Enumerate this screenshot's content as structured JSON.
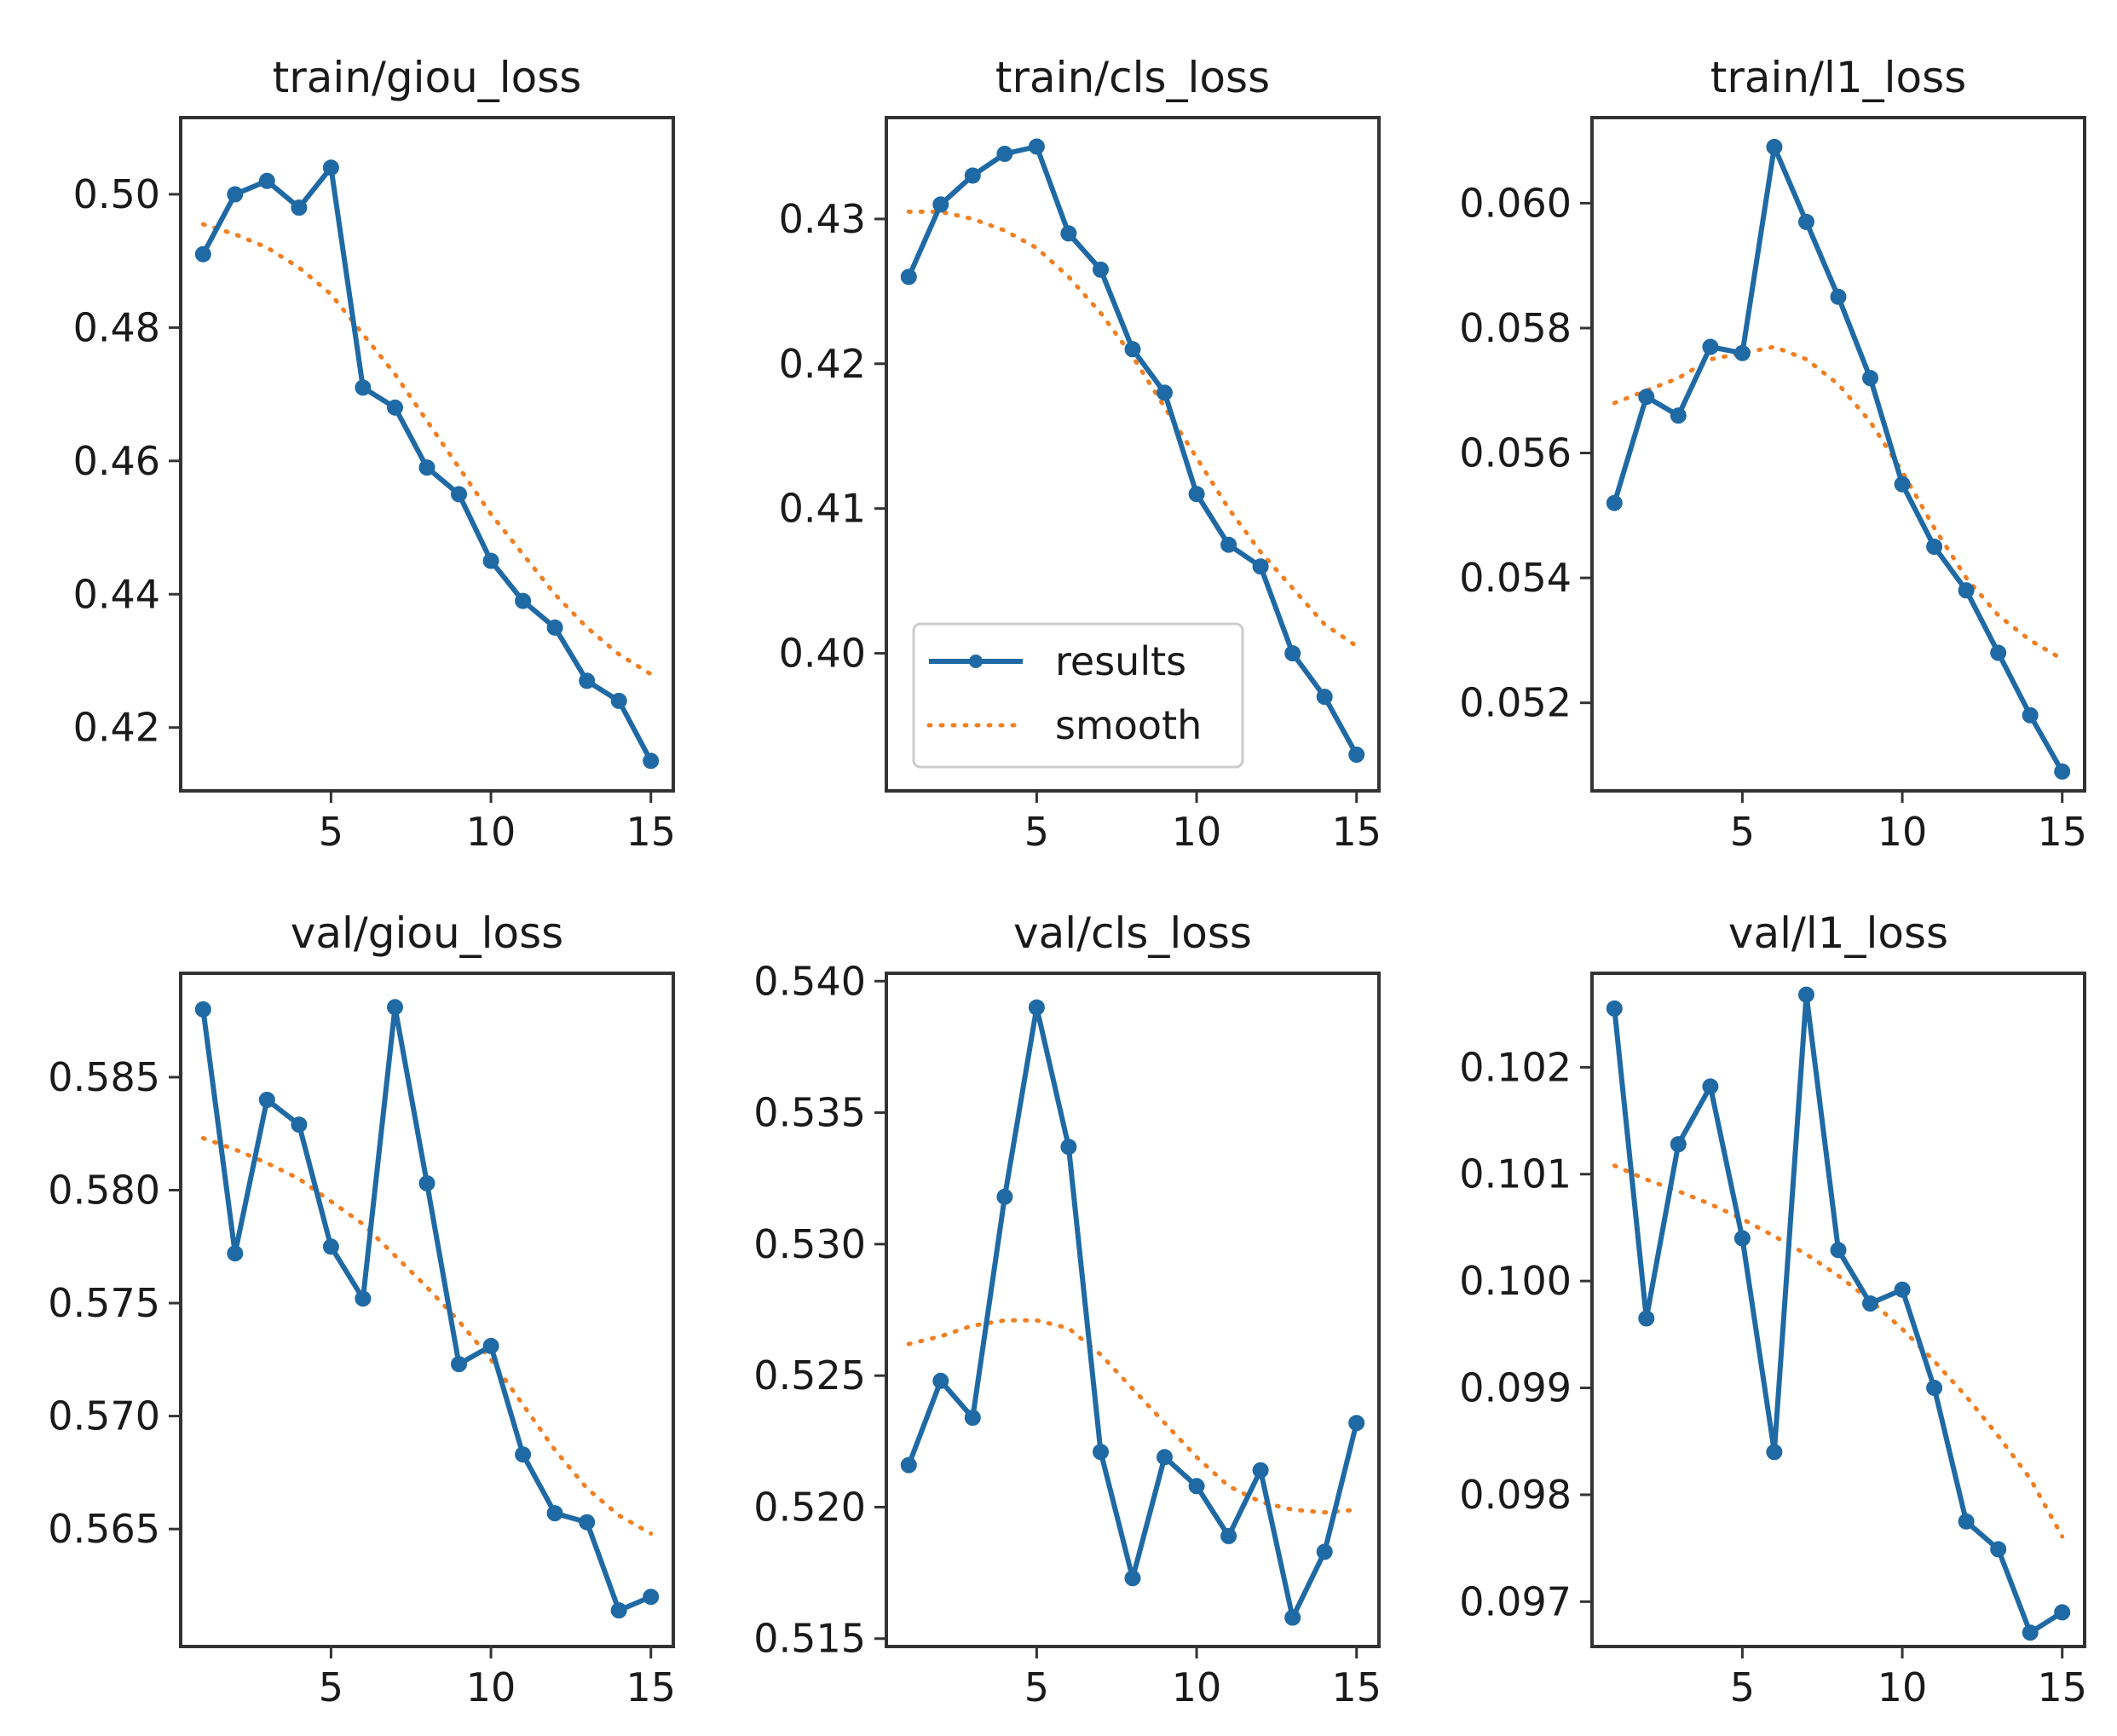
{
  "colors": {
    "results": "#1f6aa5",
    "smooth": "#f07f22",
    "axis": "#333333"
  },
  "legend": {
    "results_label": "results",
    "smooth_label": "smooth",
    "placement": "lower-left",
    "panel": 1
  },
  "chart_data": [
    {
      "type": "line",
      "title": "train/giou_loss",
      "xlabel": "",
      "ylabel": "",
      "xlim": [
        0.3,
        15.7
      ],
      "ylim": [
        0.4105,
        0.5115
      ],
      "xticks": [
        5,
        10,
        15
      ],
      "xtick_labels": [
        "5",
        "10",
        "15"
      ],
      "yticks": [
        0.42,
        0.44,
        0.46,
        0.48,
        0.5
      ],
      "ytick_labels": [
        "0.42",
        "0.44",
        "0.46",
        "0.48",
        "0.50"
      ],
      "x": [
        1,
        2,
        3,
        4,
        5,
        6,
        7,
        8,
        9,
        10,
        11,
        12,
        13,
        14,
        15
      ],
      "series": [
        {
          "name": "results",
          "values": [
            0.491,
            0.5,
            0.502,
            0.498,
            0.504,
            0.471,
            0.468,
            0.459,
            0.455,
            0.445,
            0.439,
            0.435,
            0.427,
            0.424,
            0.415
          ]
        },
        {
          "name": "smooth",
          "values": [
            0.4955,
            0.494,
            0.492,
            0.489,
            0.485,
            0.479,
            0.473,
            0.466,
            0.459,
            0.452,
            0.446,
            0.44,
            0.435,
            0.431,
            0.428
          ]
        }
      ]
    },
    {
      "type": "line",
      "title": "train/cls_loss",
      "xlabel": "",
      "ylabel": "",
      "xlim": [
        0.3,
        15.7
      ],
      "ylim": [
        0.3905,
        0.437
      ],
      "xticks": [
        5,
        10,
        15
      ],
      "xtick_labels": [
        "5",
        "10",
        "15"
      ],
      "yticks": [
        0.4,
        0.41,
        0.42,
        0.43
      ],
      "ytick_labels": [
        "0.40",
        "0.41",
        "0.42",
        "0.43"
      ],
      "x": [
        1,
        2,
        3,
        4,
        5,
        6,
        7,
        8,
        9,
        10,
        11,
        12,
        13,
        14,
        15
      ],
      "series": [
        {
          "name": "results",
          "values": [
            0.426,
            0.431,
            0.433,
            0.4345,
            0.435,
            0.429,
            0.4265,
            0.421,
            0.418,
            0.411,
            0.4075,
            0.406,
            0.4,
            0.397,
            0.393
          ]
        },
        {
          "name": "smooth",
          "values": [
            0.4305,
            0.4305,
            0.43,
            0.4292,
            0.428,
            0.426,
            0.4235,
            0.4205,
            0.417,
            0.4135,
            0.41,
            0.407,
            0.4045,
            0.402,
            0.4005
          ]
        }
      ]
    },
    {
      "type": "line",
      "title": "train/l1_loss",
      "xlabel": "",
      "ylabel": "",
      "xlim": [
        0.3,
        15.7
      ],
      "ylim": [
        0.05059,
        0.06137
      ],
      "xticks": [
        5,
        10,
        15
      ],
      "xtick_labels": [
        "5",
        "10",
        "15"
      ],
      "yticks": [
        0.052,
        0.054,
        0.056,
        0.058,
        0.06
      ],
      "ytick_labels": [
        "0.052",
        "0.054",
        "0.056",
        "0.058",
        "0.060"
      ],
      "x": [
        1,
        2,
        3,
        4,
        5,
        6,
        7,
        8,
        9,
        10,
        11,
        12,
        13,
        14,
        15
      ],
      "series": [
        {
          "name": "results",
          "values": [
            0.0552,
            0.0569,
            0.0566,
            0.0577,
            0.0576,
            0.0609,
            0.0597,
            0.0585,
            0.0572,
            0.0555,
            0.0545,
            0.0538,
            0.0528,
            0.0518,
            0.0509
          ]
        },
        {
          "name": "smooth",
          "values": [
            0.0568,
            0.057,
            0.0572,
            0.0575,
            0.0576,
            0.0577,
            0.0575,
            0.0571,
            0.0565,
            0.0557,
            0.0548,
            0.054,
            0.0534,
            0.053,
            0.0527
          ]
        }
      ]
    },
    {
      "type": "line",
      "title": "val/giou_loss",
      "xlabel": "",
      "ylabel": "",
      "xlim": [
        0.3,
        15.7
      ],
      "ylim": [
        0.5598,
        0.5896
      ],
      "xticks": [
        5,
        10,
        15
      ],
      "xtick_labels": [
        "5",
        "10",
        "15"
      ],
      "yticks": [
        0.565,
        0.57,
        0.575,
        0.58,
        0.585
      ],
      "ytick_labels": [
        "0.565",
        "0.570",
        "0.575",
        "0.580",
        "0.585"
      ],
      "x": [
        1,
        2,
        3,
        4,
        5,
        6,
        7,
        8,
        9,
        10,
        11,
        12,
        13,
        14,
        15
      ],
      "series": [
        {
          "name": "results",
          "values": [
            0.588,
            0.5772,
            0.584,
            0.5829,
            0.5775,
            0.5752,
            0.5881,
            0.5803,
            0.5723,
            0.5731,
            0.5683,
            0.5657,
            0.5653,
            0.5614,
            0.562
          ]
        },
        {
          "name": "smooth",
          "values": [
            0.5823,
            0.5818,
            0.5812,
            0.5805,
            0.5795,
            0.5785,
            0.5771,
            0.5757,
            0.5742,
            0.5725,
            0.5705,
            0.5685,
            0.5668,
            0.5656,
            0.5648
          ]
        }
      ]
    },
    {
      "type": "line",
      "title": "val/cls_loss",
      "xlabel": "",
      "ylabel": "",
      "xlim": [
        0.3,
        15.7
      ],
      "ylim": [
        0.5147,
        0.5403
      ],
      "xticks": [
        5,
        10,
        15
      ],
      "xtick_labels": [
        "5",
        "10",
        "15"
      ],
      "yticks": [
        0.515,
        0.52,
        0.525,
        0.53,
        0.535,
        0.54
      ],
      "ytick_labels": [
        "0.515",
        "0.520",
        "0.525",
        "0.530",
        "0.535",
        "0.540"
      ],
      "x": [
        1,
        2,
        3,
        4,
        5,
        6,
        7,
        8,
        9,
        10,
        11,
        12,
        13,
        14,
        15
      ],
      "series": [
        {
          "name": "results",
          "values": [
            0.5216,
            0.5248,
            0.5234,
            0.5318,
            0.539,
            0.5337,
            0.5221,
            0.5173,
            0.5219,
            0.5208,
            0.5189,
            0.5214,
            0.5158,
            0.5183,
            0.5232
          ]
        },
        {
          "name": "smooth",
          "values": [
            0.5262,
            0.5265,
            0.5269,
            0.5271,
            0.5271,
            0.5268,
            0.5258,
            0.5245,
            0.5232,
            0.5219,
            0.5208,
            0.5202,
            0.5199,
            0.5198,
            0.5199
          ]
        }
      ]
    },
    {
      "type": "line",
      "title": "val/l1_loss",
      "xlabel": "",
      "ylabel": "",
      "xlim": [
        0.3,
        15.7
      ],
      "ylim": [
        0.09658,
        0.10288
      ],
      "xticks": [
        5,
        10,
        15
      ],
      "xtick_labels": [
        "5",
        "10",
        "15"
      ],
      "yticks": [
        0.097,
        0.098,
        0.099,
        0.1,
        0.101,
        0.102
      ],
      "ytick_labels": [
        "0.097",
        "0.098",
        "0.099",
        "0.100",
        "0.101",
        "0.102"
      ],
      "x": [
        1,
        2,
        3,
        4,
        5,
        6,
        7,
        8,
        9,
        10,
        11,
        12,
        13,
        14,
        15
      ],
      "series": [
        {
          "name": "results",
          "values": [
            0.10255,
            0.09965,
            0.10128,
            0.10182,
            0.1004,
            0.0984,
            0.10268,
            0.10029,
            0.09979,
            0.09992,
            0.099,
            0.09775,
            0.09749,
            0.09671,
            0.0969
          ]
        },
        {
          "name": "smooth",
          "values": [
            0.10108,
            0.10095,
            0.10084,
            0.10072,
            0.10058,
            0.10042,
            0.10025,
            0.10005,
            0.09982,
            0.09955,
            0.09925,
            0.09892,
            0.09855,
            0.09815,
            0.09761
          ]
        }
      ]
    }
  ]
}
